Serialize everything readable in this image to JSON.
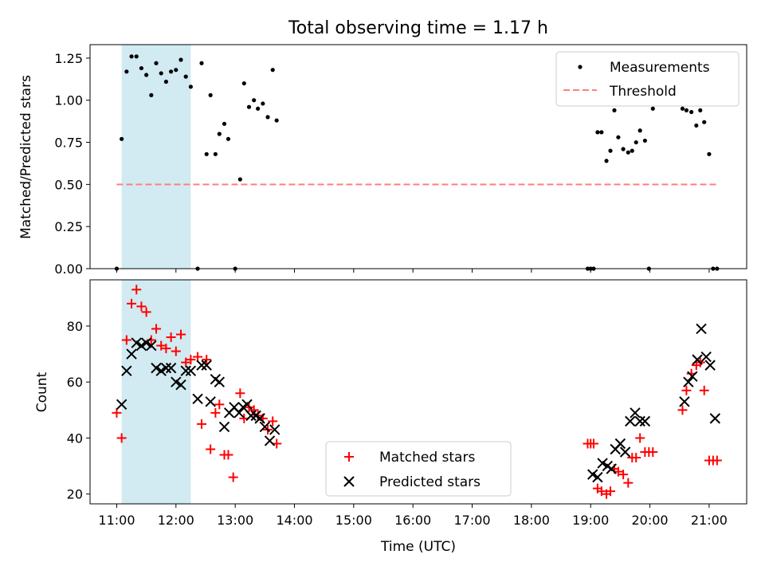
{
  "chart_data": [
    {
      "type": "scatter",
      "title": "Total observing time = 1.17 h",
      "xlabel": "",
      "ylabel": "Matched/Predicted stars",
      "xlim": [
        "10:33",
        "21:38"
      ],
      "ylim": [
        0,
        1.33
      ],
      "yticks": [
        "0.00",
        "0.25",
        "0.50",
        "0.75",
        "1.00",
        "1.25"
      ],
      "ytick_values": [
        0,
        0.25,
        0.5,
        0.75,
        1.0,
        1.25
      ],
      "shaded_interval": {
        "start": "11:05",
        "end": "12:15",
        "color": "#add8e6"
      },
      "legend_position": "upper right",
      "series": [
        {
          "name": "Measurements",
          "kind": "points",
          "color": "#000000",
          "x": [
            "11:00",
            "11:05",
            "11:10",
            "11:15",
            "11:20",
            "11:25",
            "11:30",
            "11:35",
            "11:40",
            "11:45",
            "11:50",
            "11:55",
            "12:00",
            "12:05",
            "12:10",
            "12:15",
            "12:22",
            "12:26",
            "12:31",
            "12:35",
            "12:40",
            "12:44",
            "12:49",
            "12:53",
            "13:00",
            "13:05",
            "13:09",
            "13:14",
            "13:19",
            "13:23",
            "13:28",
            "13:33",
            "13:38",
            "13:42",
            "18:57",
            "19:00",
            "19:03",
            "19:07",
            "19:11",
            "19:16",
            "19:20",
            "19:24",
            "19:28",
            "19:33",
            "19:38",
            "19:42",
            "19:46",
            "19:50",
            "19:55",
            "19:59",
            "20:03",
            "20:33",
            "20:37",
            "20:42",
            "20:47",
            "20:51",
            "20:55",
            "21:00",
            "21:04",
            "21:08"
          ],
          "y": [
            0.0,
            0.77,
            1.17,
            1.26,
            1.26,
            1.19,
            1.15,
            1.03,
            1.22,
            1.16,
            1.11,
            1.17,
            1.18,
            1.24,
            1.14,
            1.08,
            0.0,
            1.22,
            0.68,
            1.03,
            0.68,
            0.8,
            0.86,
            0.77,
            0.0,
            0.53,
            1.1,
            0.96,
            1.0,
            0.95,
            0.98,
            0.9,
            1.18,
            0.88,
            0.0,
            0.0,
            0.0,
            0.81,
            0.81,
            0.64,
            0.7,
            0.94,
            0.78,
            0.71,
            0.69,
            0.7,
            0.75,
            0.82,
            0.76,
            0.0,
            0.95,
            0.95,
            0.94,
            0.93,
            0.85,
            0.94,
            0.87,
            0.68,
            0.0,
            0.0
          ]
        },
        {
          "name": "Threshold",
          "kind": "dashed-line",
          "color": "#ff7f7f",
          "x": [
            "11:00",
            "21:08"
          ],
          "y": [
            0.5,
            0.5
          ]
        }
      ]
    },
    {
      "type": "scatter",
      "title": "",
      "xlabel": "Time (UTC)",
      "ylabel": "Count",
      "xlim": [
        "10:33",
        "21:38"
      ],
      "ylim": [
        16.5,
        96.5
      ],
      "xticks": [
        "11:00",
        "12:00",
        "13:00",
        "14:00",
        "15:00",
        "16:00",
        "17:00",
        "18:00",
        "19:00",
        "20:00",
        "21:00"
      ],
      "yticks": [
        "20",
        "40",
        "60",
        "80"
      ],
      "ytick_values": [
        20,
        40,
        60,
        80
      ],
      "shaded_interval": {
        "start": "11:05",
        "end": "12:15",
        "color": "#add8e6"
      },
      "legend_position": "lower center",
      "series": [
        {
          "name": "Matched stars",
          "marker": "plus",
          "color": "#ff0000",
          "x": [
            "11:00",
            "11:05",
            "11:10",
            "11:15",
            "11:20",
            "11:25",
            "11:30",
            "11:35",
            "11:40",
            "11:45",
            "11:50",
            "11:55",
            "12:00",
            "12:05",
            "12:10",
            "12:15",
            "12:22",
            "12:26",
            "12:31",
            "12:35",
            "12:40",
            "12:44",
            "12:49",
            "12:53",
            "12:58",
            "13:05",
            "13:09",
            "13:14",
            "13:19",
            "13:23",
            "13:28",
            "13:33",
            "13:38",
            "13:42",
            "18:57",
            "19:00",
            "19:03",
            "19:07",
            "19:11",
            "19:16",
            "19:20",
            "19:24",
            "19:28",
            "19:33",
            "19:38",
            "19:42",
            "19:46",
            "19:50",
            "19:55",
            "19:59",
            "20:03",
            "20:33",
            "20:37",
            "20:42",
            "20:47",
            "20:51",
            "20:55",
            "21:00",
            "21:04",
            "21:08"
          ],
          "y": [
            49,
            40,
            75,
            88,
            93,
            87,
            85,
            75,
            79,
            73,
            72,
            76,
            71,
            77,
            67,
            68,
            69,
            45,
            68,
            36,
            49,
            52,
            34,
            34,
            26,
            56,
            47,
            51,
            50,
            48,
            47,
            43,
            46,
            38,
            38,
            38,
            38,
            22,
            21,
            20,
            21,
            29,
            28,
            27,
            24,
            33,
            33,
            40,
            35,
            35,
            35,
            50,
            57,
            63,
            66,
            67,
            57,
            32,
            32,
            32
          ]
        },
        {
          "name": "Predicted stars",
          "marker": "x",
          "color": "#000000",
          "x": [
            "11:05",
            "11:10",
            "11:15",
            "11:20",
            "11:25",
            "11:30",
            "11:35",
            "11:40",
            "11:45",
            "11:50",
            "11:55",
            "12:00",
            "12:05",
            "12:10",
            "12:15",
            "12:22",
            "12:26",
            "12:31",
            "12:35",
            "12:40",
            "12:44",
            "12:49",
            "12:54",
            "12:59",
            "13:04",
            "13:08",
            "13:12",
            "13:16",
            "13:21",
            "13:25",
            "13:30",
            "13:35",
            "13:40",
            "19:02",
            "19:07",
            "19:12",
            "19:17",
            "19:21",
            "19:25",
            "19:30",
            "19:35",
            "19:40",
            "19:45",
            "19:50",
            "19:55",
            "20:35",
            "20:39",
            "20:43",
            "20:48",
            "20:52",
            "20:57",
            "21:01",
            "21:06"
          ],
          "y": [
            52,
            64,
            70,
            74,
            73,
            74,
            73,
            65,
            64,
            65,
            65,
            60,
            59,
            64,
            64,
            54,
            66,
            66,
            53,
            61,
            60,
            44,
            49,
            51,
            49,
            51,
            52,
            48,
            48,
            47,
            44,
            39,
            43,
            27,
            26,
            31,
            30,
            29,
            36,
            38,
            35,
            46,
            49,
            46,
            46,
            53,
            60,
            62,
            68,
            79,
            69,
            66,
            47
          ]
        }
      ]
    }
  ]
}
